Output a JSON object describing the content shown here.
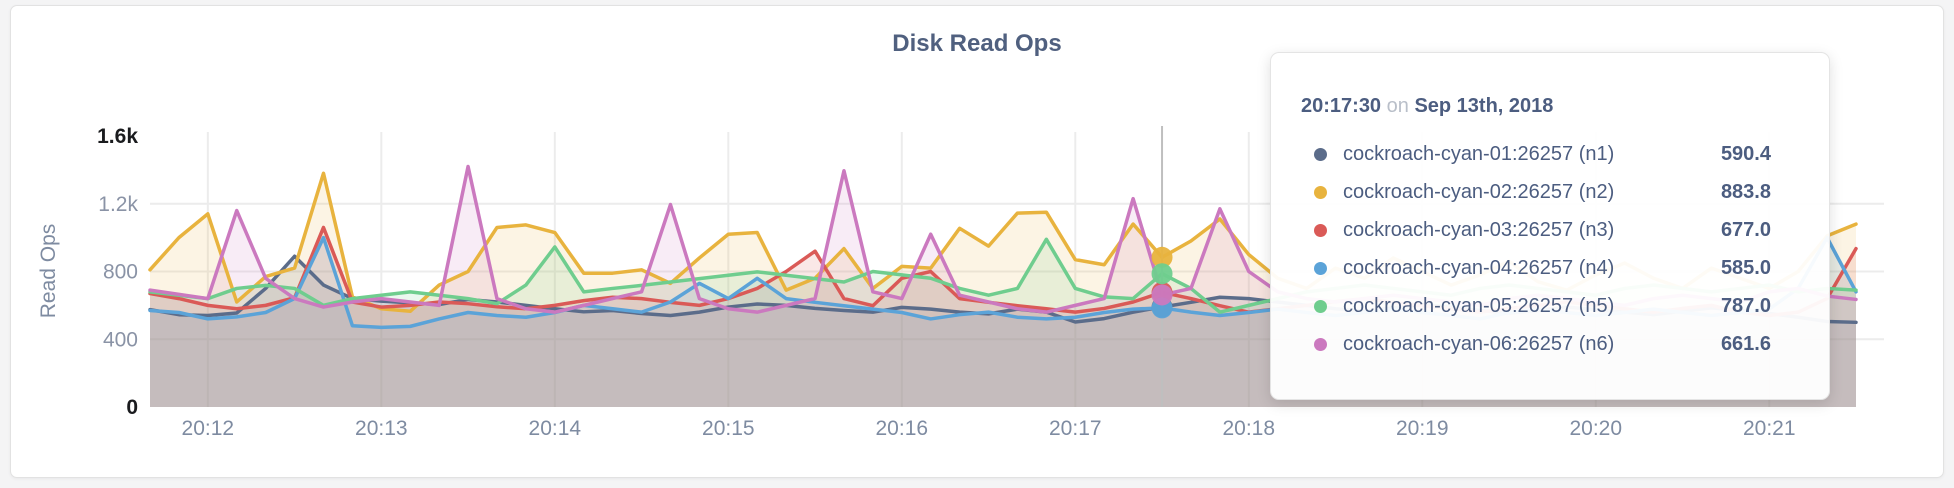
{
  "page": {
    "title": "Disk Read Ops"
  },
  "colors": {
    "n1": "#5b6c8a",
    "n2": "#e8b33e",
    "n3": "#da5a57",
    "n4": "#5ba3d8",
    "n5": "#6fcd8e",
    "n6": "#cb79bf",
    "grid": "#ececec",
    "crosshair": "#bfbfbf",
    "axis_text": "#7e8ba1",
    "tick_text": "#8a93a6",
    "tick_text_strong": "#1a1b1e",
    "title_text": "#50607f",
    "tooltip_text": "#4c5d80"
  },
  "chart_data": {
    "type": "area",
    "title": "Disk Read Ops",
    "xlabel": "",
    "ylabel": "Read Ops",
    "ylim": [
      0,
      1600
    ],
    "grid": "on",
    "time_start": "20:11:40",
    "time_step_seconds": 10,
    "y_ticks": [
      {
        "value": 0,
        "label": "0",
        "emphasis": true
      },
      {
        "value": 400,
        "label": "400",
        "emphasis": false
      },
      {
        "value": 800,
        "label": "800",
        "emphasis": false
      },
      {
        "value": 1200,
        "label": "1.2k",
        "emphasis": false
      },
      {
        "value": 1600,
        "label": "1.6k",
        "emphasis": true
      }
    ],
    "h_gridlines": [
      400,
      800,
      1200
    ],
    "x_ticks": [
      {
        "t": 20,
        "label": "20:12"
      },
      {
        "t": 80,
        "label": "20:13"
      },
      {
        "t": 140,
        "label": "20:14"
      },
      {
        "t": 200,
        "label": "20:15"
      },
      {
        "t": 260,
        "label": "20:16"
      },
      {
        "t": 320,
        "label": "20:17"
      },
      {
        "t": 380,
        "label": "20:18"
      },
      {
        "t": 440,
        "label": "20:19"
      },
      {
        "t": 500,
        "label": "20:20"
      },
      {
        "t": 560,
        "label": "20:21"
      }
    ],
    "series": [
      {
        "id": "n1",
        "name": "cockroach-cyan-01:26257 (n1)",
        "color": "#5b6c8a",
        "values": [
          575,
          545,
          540,
          555,
          700,
          890,
          720,
          640,
          625,
          615,
          605,
          635,
          620,
          600,
          580,
          562,
          570,
          552,
          540,
          560,
          590,
          608,
          600,
          582,
          570,
          560,
          588,
          578,
          560,
          550,
          578,
          560,
          502,
          522,
          560,
          590.4,
          618,
          648,
          640,
          620,
          600,
          580,
          565,
          585,
          605,
          590,
          570,
          555,
          570,
          590,
          575,
          560,
          545,
          565,
          585,
          570,
          552,
          530,
          505,
          500
        ]
      },
      {
        "id": "n2",
        "name": "cockroach-cyan-02:26257 (n2)",
        "color": "#e8b33e",
        "values": [
          810,
          1000,
          1140,
          620,
          770,
          820,
          1380,
          650,
          580,
          565,
          720,
          800,
          1060,
          1075,
          1030,
          790,
          790,
          810,
          730,
          880,
          1020,
          1030,
          690,
          760,
          935,
          700,
          830,
          820,
          1055,
          950,
          1145,
          1150,
          870,
          840,
          1080,
          883.8,
          980,
          1110,
          900,
          760,
          700,
          820,
          760,
          880,
          800,
          720,
          780,
          860,
          740,
          690,
          780,
          850,
          760,
          700,
          820,
          760,
          700,
          800,
          1010,
          1080
        ]
      },
      {
        "id": "n3",
        "name": "cockroach-cyan-03:26257 (n3)",
        "color": "#da5a57",
        "values": [
          670,
          640,
          600,
          580,
          600,
          645,
          1060,
          620,
          590,
          600,
          620,
          610,
          592,
          580,
          600,
          628,
          648,
          640,
          618,
          600,
          640,
          700,
          800,
          920,
          640,
          598,
          760,
          800,
          640,
          618,
          598,
          580,
          560,
          582,
          620,
          677,
          640,
          598,
          560,
          580,
          600,
          622,
          640,
          618,
          598,
          580,
          560,
          582,
          600,
          620,
          600,
          580,
          560,
          582,
          600,
          560,
          540,
          560,
          640,
          935
        ]
      },
      {
        "id": "n4",
        "name": "cockroach-cyan-04:26257 (n4)",
        "color": "#5ba3d8",
        "values": [
          570,
          558,
          520,
          532,
          558,
          640,
          1000,
          480,
          470,
          476,
          520,
          558,
          540,
          530,
          558,
          600,
          580,
          560,
          620,
          730,
          640,
          760,
          640,
          618,
          598,
          578,
          558,
          520,
          545,
          560,
          530,
          520,
          530,
          558,
          578,
          585,
          560,
          540,
          558,
          578,
          558,
          540,
          558,
          578,
          558,
          540,
          520,
          558,
          578,
          558,
          540,
          558,
          578,
          558,
          540,
          558,
          578,
          700,
          1000,
          680
        ]
      },
      {
        "id": "n5",
        "name": "cockroach-cyan-05:26257 (n5)",
        "color": "#6fcd8e",
        "values": [
          680,
          660,
          640,
          700,
          718,
          700,
          600,
          640,
          660,
          680,
          660,
          640,
          610,
          720,
          945,
          680,
          700,
          718,
          738,
          758,
          778,
          798,
          778,
          758,
          738,
          800,
          780,
          760,
          700,
          660,
          700,
          990,
          700,
          650,
          640,
          787,
          700,
          560,
          600,
          640,
          680,
          700,
          720,
          700,
          680,
          660,
          700,
          720,
          700,
          680,
          660,
          700,
          720,
          700,
          680,
          700,
          720,
          680,
          700,
          690
        ]
      },
      {
        "id": "n6",
        "name": "cockroach-cyan-06:26257 (n6)",
        "color": "#cb79bf",
        "values": [
          690,
          665,
          640,
          1160,
          760,
          640,
          590,
          620,
          640,
          620,
          600,
          1420,
          640,
          580,
          560,
          600,
          640,
          680,
          1195,
          640,
          580,
          560,
          600,
          640,
          1395,
          680,
          640,
          1020,
          660,
          620,
          580,
          560,
          600,
          640,
          1230,
          661.6,
          700,
          1170,
          800,
          680,
          640,
          620,
          640,
          660,
          640,
          620,
          600,
          640,
          660,
          640,
          620,
          600,
          640,
          660,
          640,
          620,
          680,
          700,
          655,
          635
        ]
      }
    ],
    "hover": {
      "index": 35,
      "t": 350,
      "time": "20:17:30",
      "date": "Sep 13th, 2018"
    },
    "legend_position": "tooltip"
  },
  "tooltip": {
    "time": "20:17:30",
    "preposition": "on",
    "date": "Sep 13th, 2018",
    "rows": [
      {
        "color": "#5b6c8a",
        "label": "cockroach-cyan-01:26257 (n1)",
        "value": "590.4"
      },
      {
        "color": "#e8b33e",
        "label": "cockroach-cyan-02:26257 (n2)",
        "value": "883.8"
      },
      {
        "color": "#da5a57",
        "label": "cockroach-cyan-03:26257 (n3)",
        "value": "677.0"
      },
      {
        "color": "#5ba3d8",
        "label": "cockroach-cyan-04:26257 (n4)",
        "value": "585.0"
      },
      {
        "color": "#6fcd8e",
        "label": "cockroach-cyan-05:26257 (n5)",
        "value": "787.0"
      },
      {
        "color": "#cb79bf",
        "label": "cockroach-cyan-06:26257 (n6)",
        "value": "661.6"
      }
    ]
  }
}
